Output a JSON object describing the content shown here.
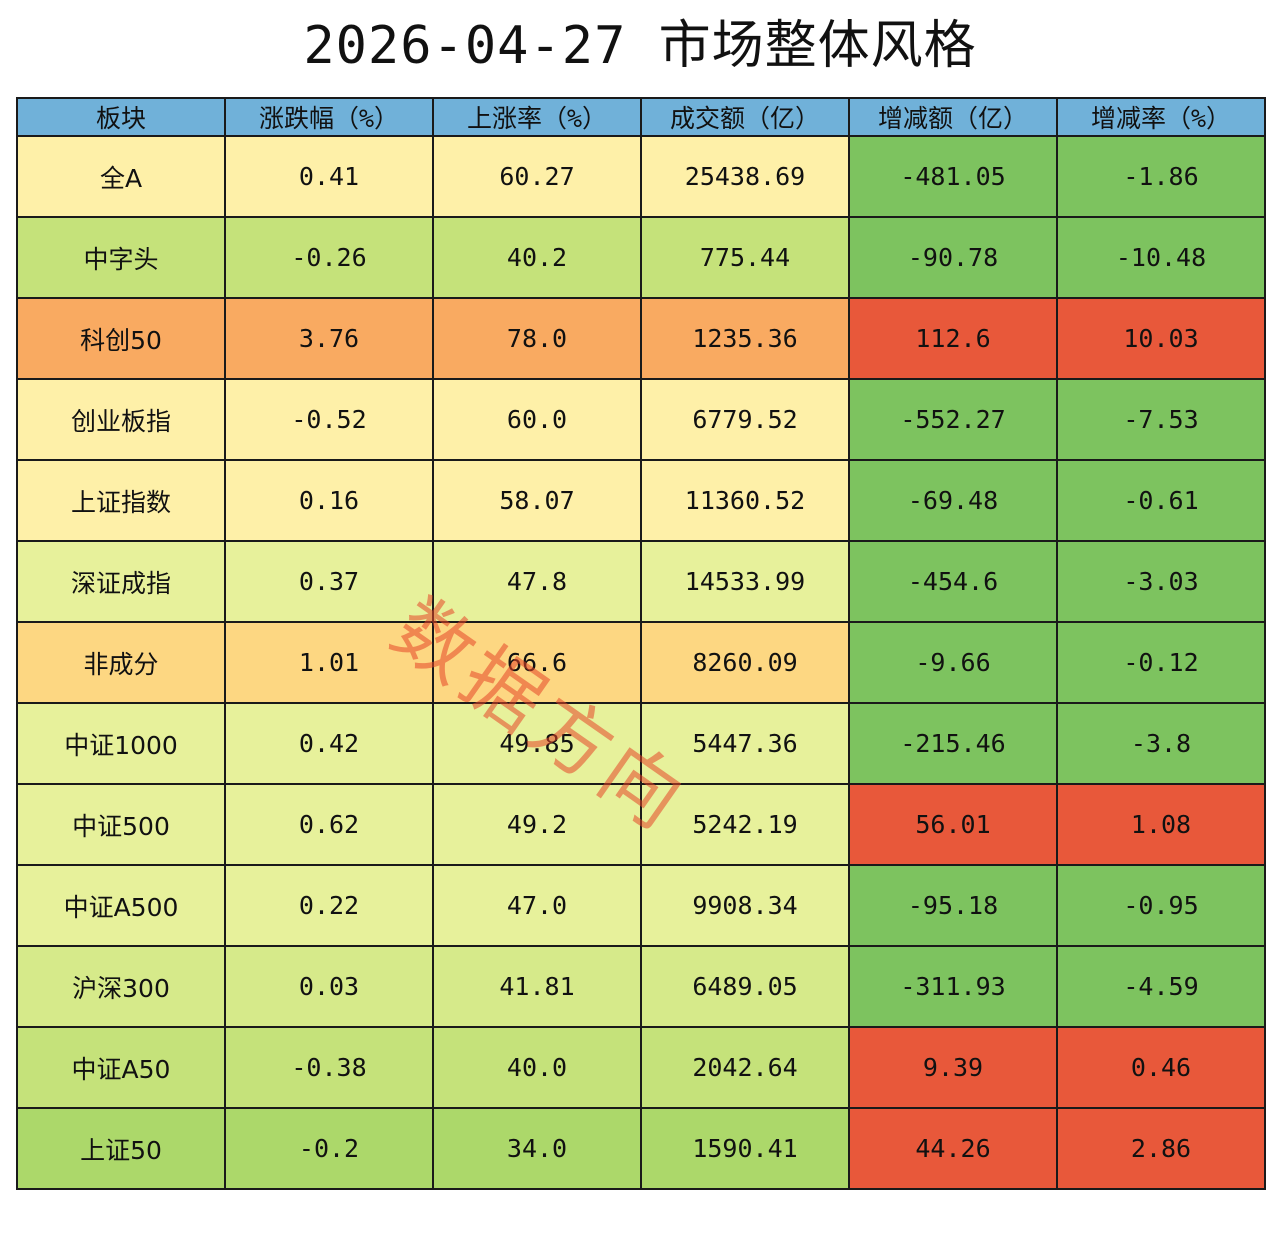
{
  "title": "2026-04-27 市场整体风格",
  "watermark": "数据方向",
  "colors": {
    "header": "#70b1d9",
    "light_yellow": "#fef0a8",
    "yellow_green": "#e7f19b",
    "light_green": "#c5e27a",
    "green": "#7dc35f",
    "orange": "#f9aa61",
    "light_orange": "#fdd782",
    "red": "#e8583a"
  },
  "chart_data": {
    "type": "table",
    "columns": [
      "板块",
      "涨跌幅（%）",
      "上涨率（%）",
      "成交额（亿）",
      "增减额（亿）",
      "增减率（%）"
    ],
    "rows": [
      {
        "cells": [
          "全A",
          "0.41",
          "60.27",
          "25438.69",
          "-481.05",
          "-1.86"
        ],
        "colors": [
          "#fef0a8",
          "#fef0a8",
          "#fef0a8",
          "#fef0a8",
          "#7dc35f",
          "#7dc35f"
        ]
      },
      {
        "cells": [
          "中字头",
          "-0.26",
          "40.2",
          "775.44",
          "-90.78",
          "-10.48"
        ],
        "colors": [
          "#c5e27a",
          "#c5e27a",
          "#c5e27a",
          "#c5e27a",
          "#7dc35f",
          "#7dc35f"
        ]
      },
      {
        "cells": [
          "科创50",
          "3.76",
          "78.0",
          "1235.36",
          "112.6",
          "10.03"
        ],
        "colors": [
          "#f9aa61",
          "#f9aa61",
          "#f9aa61",
          "#f9aa61",
          "#e8583a",
          "#e8583a"
        ]
      },
      {
        "cells": [
          "创业板指",
          "-0.52",
          "60.0",
          "6779.52",
          "-552.27",
          "-7.53"
        ],
        "colors": [
          "#fef0a8",
          "#fef0a8",
          "#fef0a8",
          "#fef0a8",
          "#7dc35f",
          "#7dc35f"
        ]
      },
      {
        "cells": [
          "上证指数",
          "0.16",
          "58.07",
          "11360.52",
          "-69.48",
          "-0.61"
        ],
        "colors": [
          "#fef0a8",
          "#fef0a8",
          "#fef0a8",
          "#fef0a8",
          "#7dc35f",
          "#7dc35f"
        ]
      },
      {
        "cells": [
          "深证成指",
          "0.37",
          "47.8",
          "14533.99",
          "-454.6",
          "-3.03"
        ],
        "colors": [
          "#e7f19b",
          "#e7f19b",
          "#e7f19b",
          "#e7f19b",
          "#7dc35f",
          "#7dc35f"
        ]
      },
      {
        "cells": [
          "非成分",
          "1.01",
          "66.6",
          "8260.09",
          "-9.66",
          "-0.12"
        ],
        "colors": [
          "#fdd782",
          "#fdd782",
          "#fdd782",
          "#fdd782",
          "#7dc35f",
          "#7dc35f"
        ]
      },
      {
        "cells": [
          "中证1000",
          "0.42",
          "49.85",
          "5447.36",
          "-215.46",
          "-3.8"
        ],
        "colors": [
          "#e7f19b",
          "#e7f19b",
          "#e7f19b",
          "#e7f19b",
          "#7dc35f",
          "#7dc35f"
        ]
      },
      {
        "cells": [
          "中证500",
          "0.62",
          "49.2",
          "5242.19",
          "56.01",
          "1.08"
        ],
        "colors": [
          "#e7f19b",
          "#e7f19b",
          "#e7f19b",
          "#e7f19b",
          "#e8583a",
          "#e8583a"
        ]
      },
      {
        "cells": [
          "中证A500",
          "0.22",
          "47.0",
          "9908.34",
          "-95.18",
          "-0.95"
        ],
        "colors": [
          "#e7f19b",
          "#e7f19b",
          "#e7f19b",
          "#e7f19b",
          "#7dc35f",
          "#7dc35f"
        ]
      },
      {
        "cells": [
          "沪深300",
          "0.03",
          "41.81",
          "6489.05",
          "-311.93",
          "-4.59"
        ],
        "colors": [
          "#d6ea8a",
          "#d6ea8a",
          "#d6ea8a",
          "#d6ea8a",
          "#7dc35f",
          "#7dc35f"
        ]
      },
      {
        "cells": [
          "中证A50",
          "-0.38",
          "40.0",
          "2042.64",
          "9.39",
          "0.46"
        ],
        "colors": [
          "#c5e27a",
          "#c5e27a",
          "#c5e27a",
          "#c5e27a",
          "#e8583a",
          "#e8583a"
        ]
      },
      {
        "cells": [
          "上证50",
          "-0.2",
          "34.0",
          "1590.41",
          "44.26",
          "2.86"
        ],
        "colors": [
          "#acd86a",
          "#acd86a",
          "#acd86a",
          "#acd86a",
          "#e8583a",
          "#e8583a"
        ]
      }
    ]
  }
}
